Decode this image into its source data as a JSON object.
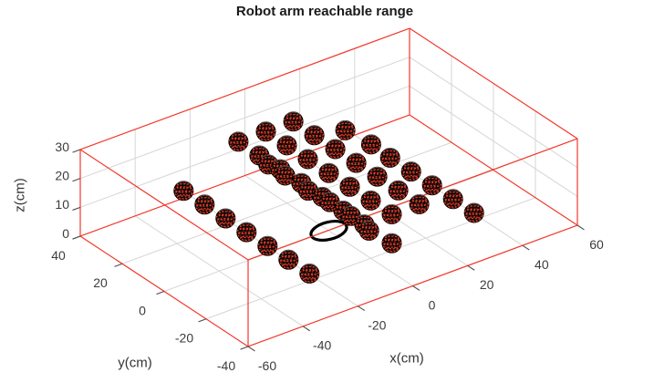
{
  "chart_data": {
    "type": "scatter",
    "subtype": "scatter3d",
    "title": "Robot arm reachable range",
    "xlabel": "x(cm)",
    "ylabel": "y(cm)",
    "zlabel": "z(cm)",
    "xlim": [
      -60,
      60
    ],
    "ylim": [
      -40,
      40
    ],
    "zlim": [
      0,
      30
    ],
    "xticks": [
      -60,
      -40,
      -20,
      0,
      20,
      40,
      60
    ],
    "yticks": [
      -40,
      -20,
      0,
      20,
      40
    ],
    "zticks": [
      0,
      10,
      20,
      30
    ],
    "grid": true,
    "legend": "none",
    "view": {
      "azimuth": -37.5,
      "elevation": 30
    },
    "colors": {
      "box": "#f2382b",
      "grid": "#d6d6d6",
      "tick": "#4d4d4d",
      "tick_text": "#3c3c3c",
      "title_text": "#1a1a1a",
      "marker_face": "#0a0a0a",
      "marker_wire": "#ee3b25",
      "base_circle": "#000000"
    },
    "marker": {
      "shape": "wireframe-sphere",
      "radius_px": 11
    },
    "base_circle": {
      "center": [
        0,
        0,
        0
      ],
      "radius_cm": 5
    },
    "points": [
      [
        -10,
        30,
        20
      ],
      [
        0,
        30,
        20
      ],
      [
        10,
        30,
        20
      ],
      [
        -10,
        20,
        20
      ],
      [
        0,
        20,
        20
      ],
      [
        10,
        20,
        20
      ],
      [
        19,
        17,
        20
      ],
      [
        20,
        6,
        20
      ],
      [
        -10,
        10,
        20
      ],
      [
        0,
        10,
        20
      ],
      [
        10,
        10,
        20
      ],
      [
        -10,
        0,
        20
      ],
      [
        0,
        0,
        20
      ],
      [
        10,
        0,
        20
      ],
      [
        -10,
        -10,
        20
      ],
      [
        0,
        -10,
        20
      ],
      [
        10,
        -10,
        20
      ],
      [
        -10,
        -20,
        20
      ],
      [
        0,
        -20,
        20
      ],
      [
        10,
        -20,
        20
      ],
      [
        -10,
        -30,
        20
      ],
      [
        0,
        -30,
        20
      ],
      [
        10,
        -30,
        20
      ],
      [
        -6,
        21,
        15
      ],
      [
        -6,
        13,
        15
      ],
      [
        -6,
        2,
        15
      ],
      [
        -5,
        -7,
        15
      ],
      [
        -5,
        -17,
        15
      ],
      [
        -6,
        -27,
        15
      ],
      [
        -30,
        30,
        10
      ],
      [
        -30,
        20,
        10
      ],
      [
        -30,
        10,
        10
      ],
      [
        -30,
        0,
        10
      ],
      [
        -30,
        -10,
        10
      ],
      [
        -30,
        -20,
        10
      ],
      [
        -30,
        -30,
        10
      ],
      [
        30,
        10,
        10
      ],
      [
        30,
        0,
        10
      ],
      [
        30,
        -10,
        10
      ],
      [
        30,
        -20,
        10
      ],
      [
        30,
        -30,
        10
      ],
      [
        0,
        -30,
        10
      ]
    ]
  }
}
